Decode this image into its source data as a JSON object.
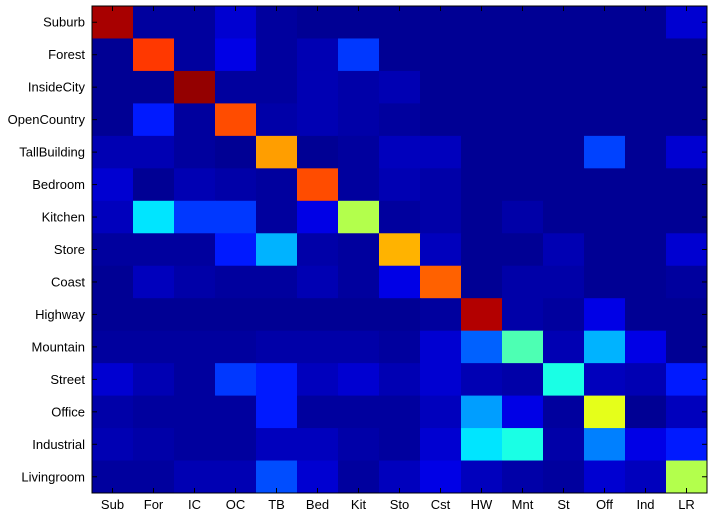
{
  "chart_data": {
    "type": "heatmap",
    "title": "",
    "xlabel": "",
    "ylabel": "",
    "colormap": "jet",
    "value_range": [
      0,
      1
    ],
    "row_labels": [
      "Suburb",
      "Forest",
      "InsideCity",
      "OpenCountry",
      "TallBuilding",
      "Bedroom",
      "Kitchen",
      "Store",
      "Coast",
      "Highway",
      "Mountain",
      "Street",
      "Office",
      "Industrial",
      "Livingroom"
    ],
    "col_labels": [
      "Sub",
      "For",
      "IC",
      "OC",
      "TB",
      "Bed",
      "Kit",
      "Sto",
      "Cst",
      "HW",
      "Mnt",
      "St",
      "Off",
      "Ind",
      "LR"
    ],
    "values": [
      [
        0.96,
        0.03,
        0.03,
        0.08,
        0.03,
        0.02,
        0.02,
        0.02,
        0.02,
        0.02,
        0.02,
        0.02,
        0.02,
        0.02,
        0.08
      ],
      [
        0.02,
        0.82,
        0.03,
        0.1,
        0.03,
        0.05,
        0.18,
        0.02,
        0.02,
        0.02,
        0.02,
        0.02,
        0.02,
        0.02,
        0.02
      ],
      [
        0.02,
        0.02,
        0.98,
        0.03,
        0.03,
        0.05,
        0.04,
        0.05,
        0.02,
        0.02,
        0.02,
        0.02,
        0.02,
        0.02,
        0.02
      ],
      [
        0.02,
        0.15,
        0.03,
        0.8,
        0.04,
        0.05,
        0.04,
        0.03,
        0.02,
        0.02,
        0.02,
        0.02,
        0.02,
        0.02,
        0.02
      ],
      [
        0.05,
        0.05,
        0.03,
        0.02,
        0.72,
        0.02,
        0.03,
        0.06,
        0.06,
        0.02,
        0.02,
        0.02,
        0.19,
        0.02,
        0.08
      ],
      [
        0.08,
        0.02,
        0.05,
        0.04,
        0.03,
        0.8,
        0.03,
        0.05,
        0.04,
        0.02,
        0.02,
        0.02,
        0.02,
        0.02,
        0.02
      ],
      [
        0.06,
        0.35,
        0.18,
        0.18,
        0.03,
        0.1,
        0.55,
        0.03,
        0.04,
        0.02,
        0.04,
        0.02,
        0.02,
        0.02,
        0.02
      ],
      [
        0.03,
        0.03,
        0.03,
        0.15,
        0.3,
        0.04,
        0.03,
        0.7,
        0.06,
        0.02,
        0.02,
        0.05,
        0.02,
        0.02,
        0.08
      ],
      [
        0.02,
        0.06,
        0.04,
        0.03,
        0.03,
        0.05,
        0.03,
        0.1,
        0.78,
        0.02,
        0.04,
        0.04,
        0.02,
        0.02,
        0.03
      ],
      [
        0.02,
        0.02,
        0.02,
        0.02,
        0.02,
        0.02,
        0.02,
        0.02,
        0.03,
        0.95,
        0.04,
        0.03,
        0.1,
        0.02,
        0.02
      ],
      [
        0.03,
        0.03,
        0.03,
        0.03,
        0.04,
        0.04,
        0.04,
        0.03,
        0.08,
        0.22,
        0.45,
        0.05,
        0.3,
        0.1,
        0.02
      ],
      [
        0.08,
        0.05,
        0.03,
        0.18,
        0.15,
        0.06,
        0.08,
        0.05,
        0.08,
        0.05,
        0.04,
        0.4,
        0.06,
        0.05,
        0.15
      ],
      [
        0.04,
        0.03,
        0.03,
        0.03,
        0.15,
        0.03,
        0.03,
        0.03,
        0.06,
        0.28,
        0.1,
        0.03,
        0.6,
        0.02,
        0.06
      ],
      [
        0.05,
        0.04,
        0.03,
        0.03,
        0.06,
        0.06,
        0.04,
        0.03,
        0.08,
        0.35,
        0.4,
        0.04,
        0.25,
        0.1,
        0.15
      ],
      [
        0.03,
        0.03,
        0.05,
        0.05,
        0.2,
        0.08,
        0.03,
        0.06,
        0.1,
        0.06,
        0.04,
        0.03,
        0.08,
        0.06,
        0.55
      ]
    ]
  }
}
